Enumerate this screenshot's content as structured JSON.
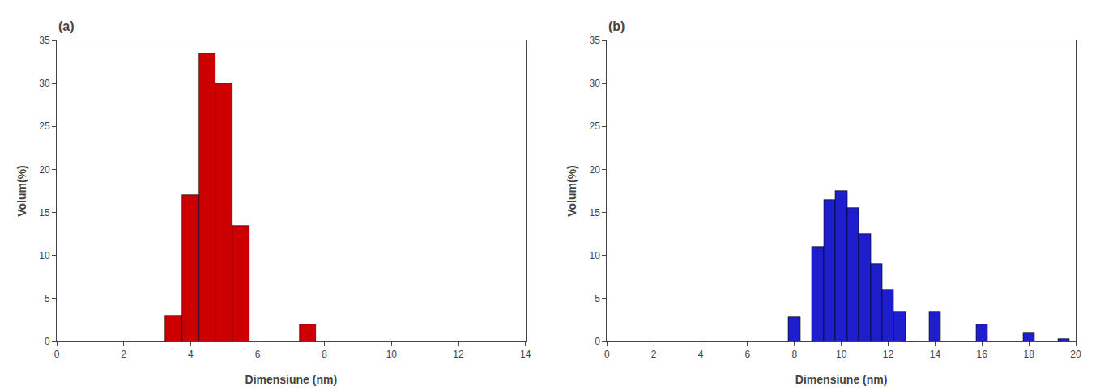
{
  "chart_data": [
    {
      "type": "bar",
      "title": "(a)",
      "x": [
        3.5,
        4.0,
        4.5,
        5.0,
        5.5,
        7.5
      ],
      "values": [
        3.0,
        17.0,
        33.5,
        30.0,
        13.5,
        2.0
      ],
      "color": "#CC0000",
      "xlabel": "Dimensiune (nm)",
      "ylabel": "Volum(%)",
      "xlim": [
        0,
        14
      ],
      "ylim": [
        0,
        35
      ],
      "xticks": [
        0,
        2,
        4,
        6,
        8,
        10,
        12,
        14
      ],
      "yticks": [
        0,
        5,
        10,
        15,
        20,
        25,
        30,
        35
      ],
      "grid": false
    },
    {
      "type": "bar",
      "title": "(b)",
      "x": [
        8.0,
        8.5,
        9.0,
        9.5,
        10.0,
        10.5,
        11.0,
        11.5,
        12.0,
        12.5,
        13.0,
        14.0,
        16.0,
        18.0,
        19.5
      ],
      "values": [
        2.8,
        0,
        11.0,
        16.5,
        17.5,
        15.5,
        12.5,
        9.0,
        6.0,
        3.5,
        0,
        3.5,
        2.0,
        1.0,
        0.3
      ],
      "color": "#1E1ECC",
      "xlabel": "Dimensiune (nm)",
      "ylabel": "Volum(%)",
      "xlim": [
        0,
        20
      ],
      "ylim": [
        0,
        35
      ],
      "xticks": [
        0,
        2,
        4,
        6,
        8,
        10,
        12,
        14,
        16,
        18,
        20
      ],
      "yticks": [
        0,
        5,
        10,
        15,
        20,
        25,
        30,
        35
      ],
      "grid": false
    }
  ]
}
